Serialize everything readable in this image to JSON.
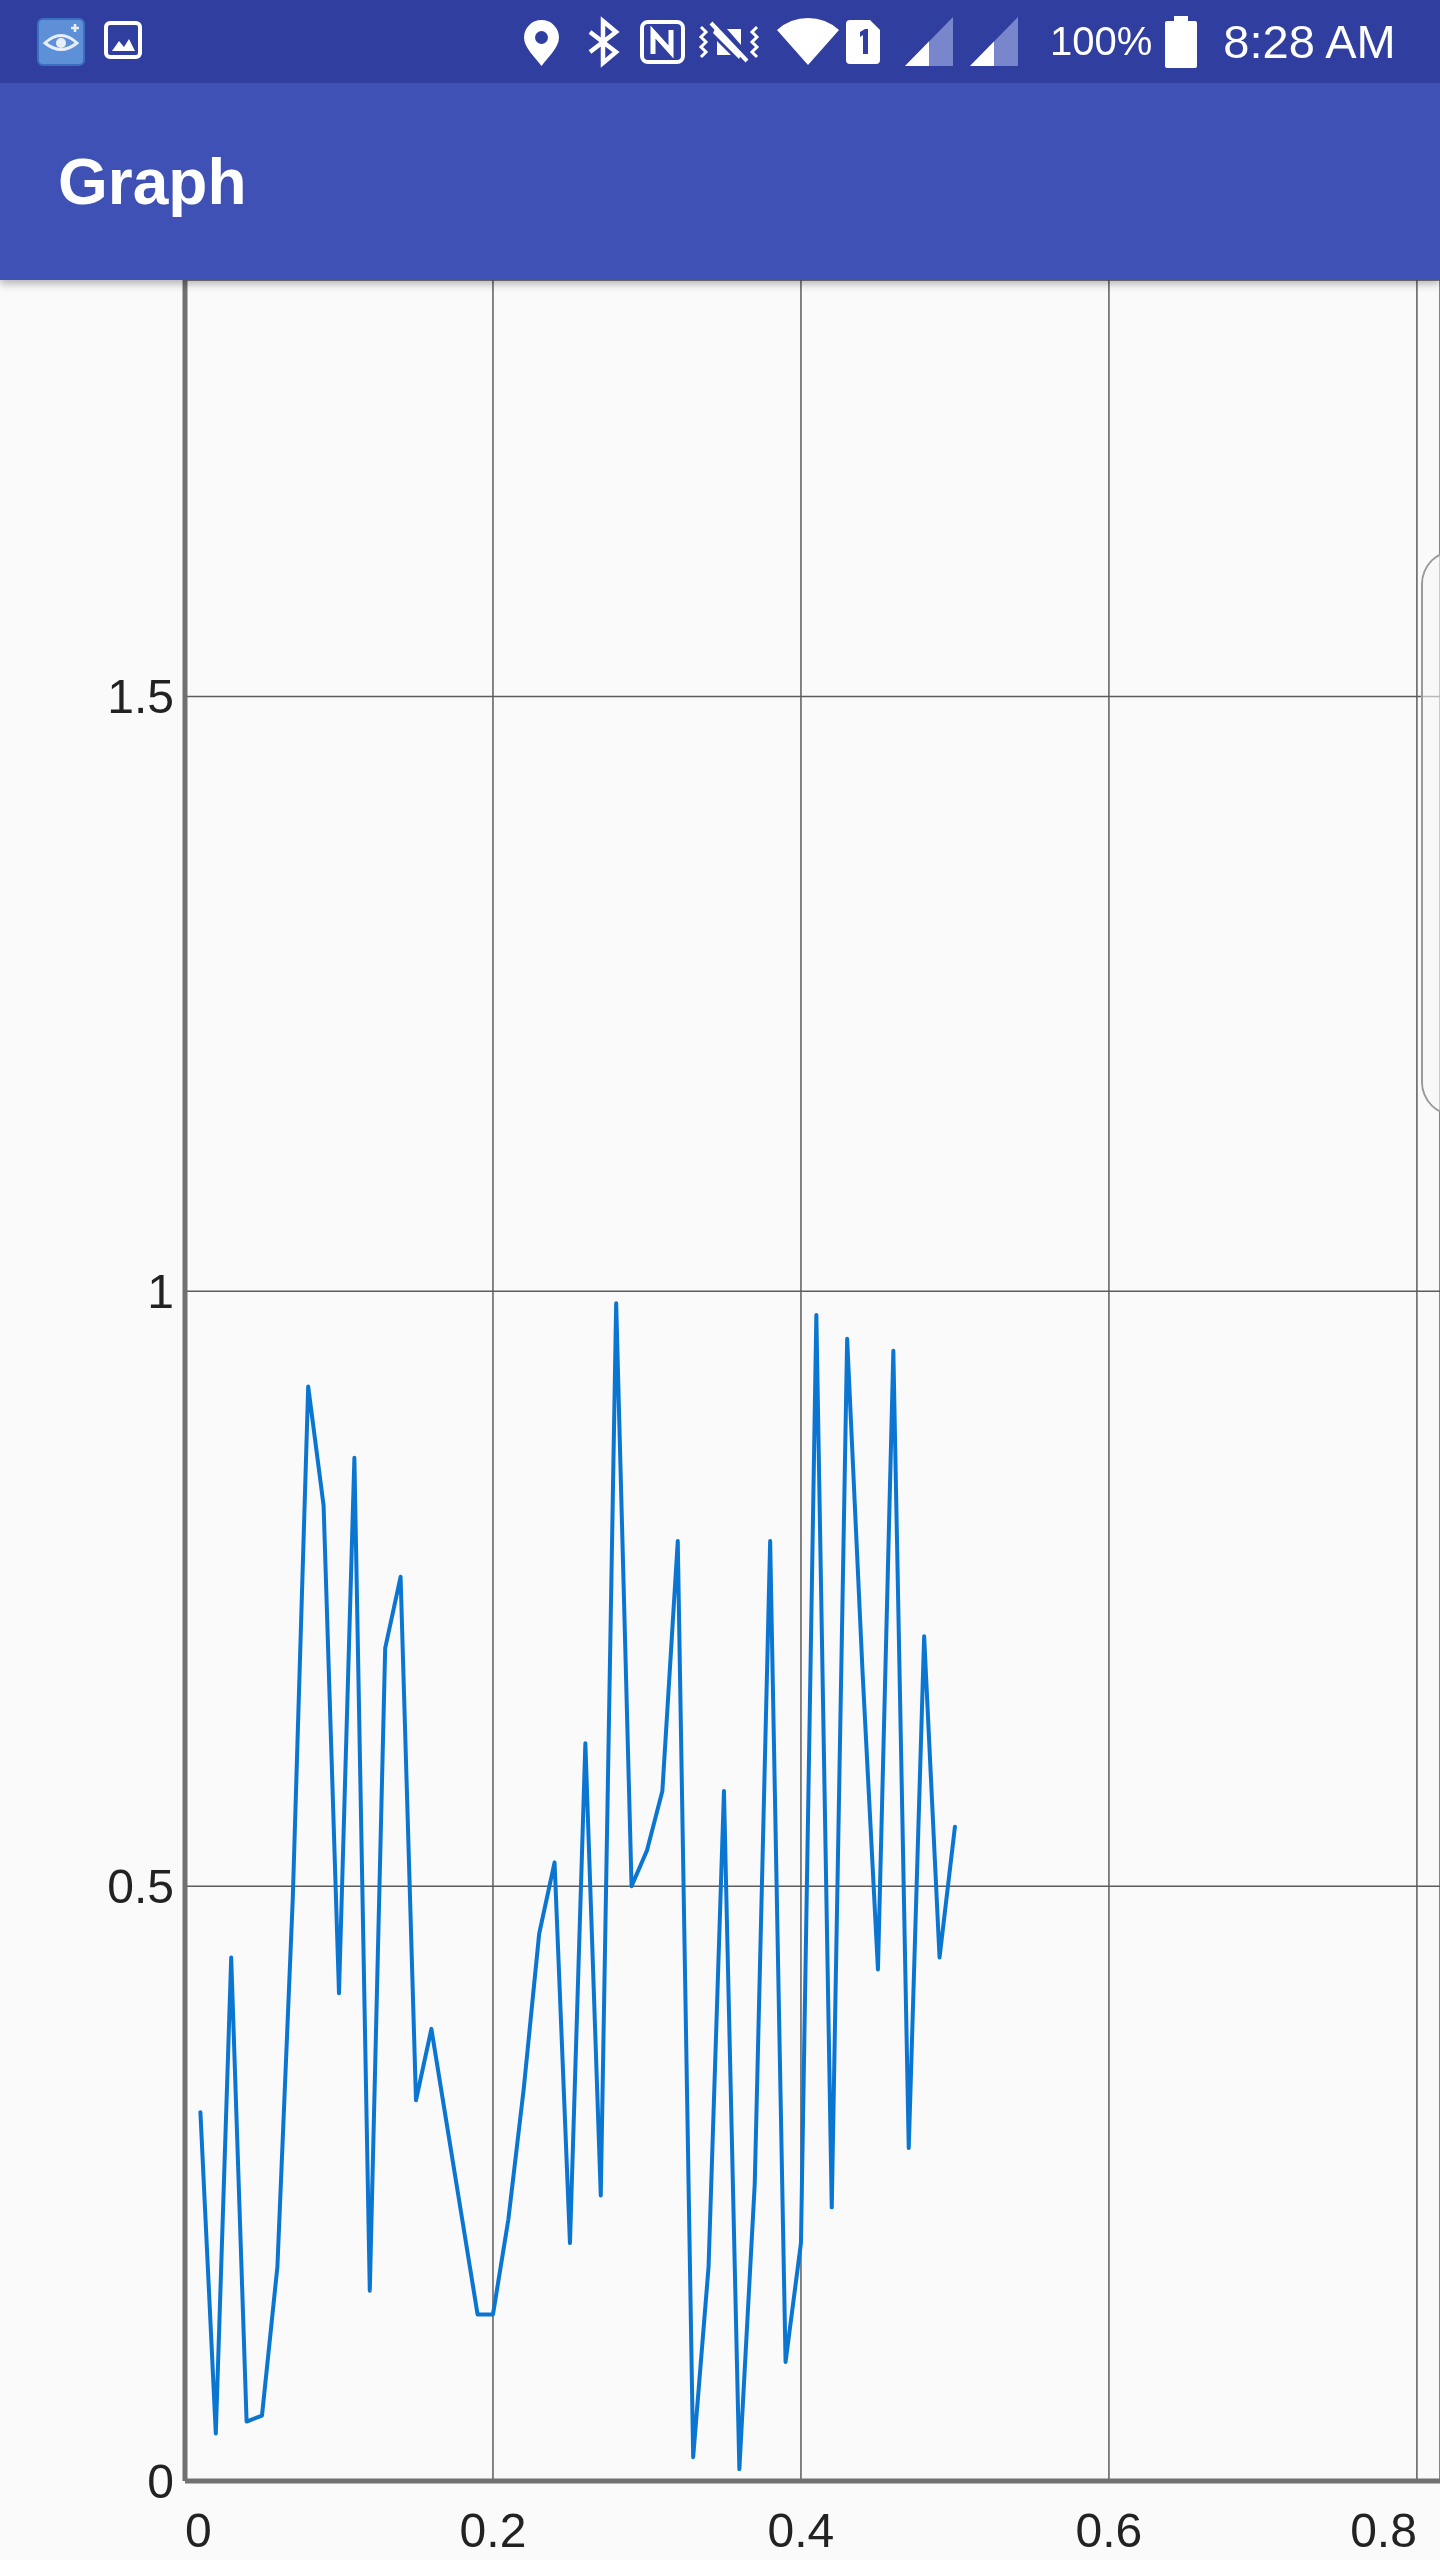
{
  "chart_data": {
    "type": "line",
    "title": "Graph",
    "annotations": [
      "100%",
      "8:28 AM"
    ],
    "x": [
      0.01,
      0.02,
      0.03,
      0.04,
      0.05,
      0.06,
      0.07,
      0.08,
      0.09,
      0.1,
      0.11,
      0.12,
      0.13,
      0.14,
      0.15,
      0.16,
      0.17,
      0.18,
      0.19,
      0.2,
      0.21,
      0.22,
      0.23,
      0.24,
      0.25,
      0.26,
      0.27,
      0.28,
      0.29,
      0.3,
      0.31,
      0.32,
      0.33,
      0.34,
      0.35,
      0.36,
      0.37,
      0.38,
      0.39,
      0.4,
      0.41,
      0.42,
      0.43,
      0.44,
      0.45,
      0.46,
      0.47,
      0.48,
      0.49,
      0.5
    ],
    "values": [
      0.31,
      0.04,
      0.44,
      0.05,
      0.055,
      0.18,
      0.49,
      0.92,
      0.82,
      0.41,
      0.86,
      0.16,
      0.7,
      0.76,
      0.32,
      0.38,
      0.3,
      0.22,
      0.14,
      0.14,
      0.22,
      0.33,
      0.46,
      0.52,
      0.2,
      0.62,
      0.24,
      0.99,
      0.5,
      0.53,
      0.58,
      0.79,
      0.02,
      0.18,
      0.58,
      0.01,
      0.25,
      0.79,
      0.1,
      0.2,
      0.98,
      0.23,
      0.96,
      0.68,
      0.43,
      0.95,
      0.28,
      0.71,
      0.44,
      0.55
    ],
    "color": "#0b76d1",
    "xlim": [
      0,
      0.815
    ],
    "xticks": [
      0,
      0.2,
      0.4,
      0.6,
      0.8
    ],
    "ylim": [
      0,
      1.85
    ],
    "yticks": [
      0,
      0.5,
      1,
      1.5
    ],
    "grid": true
  }
}
